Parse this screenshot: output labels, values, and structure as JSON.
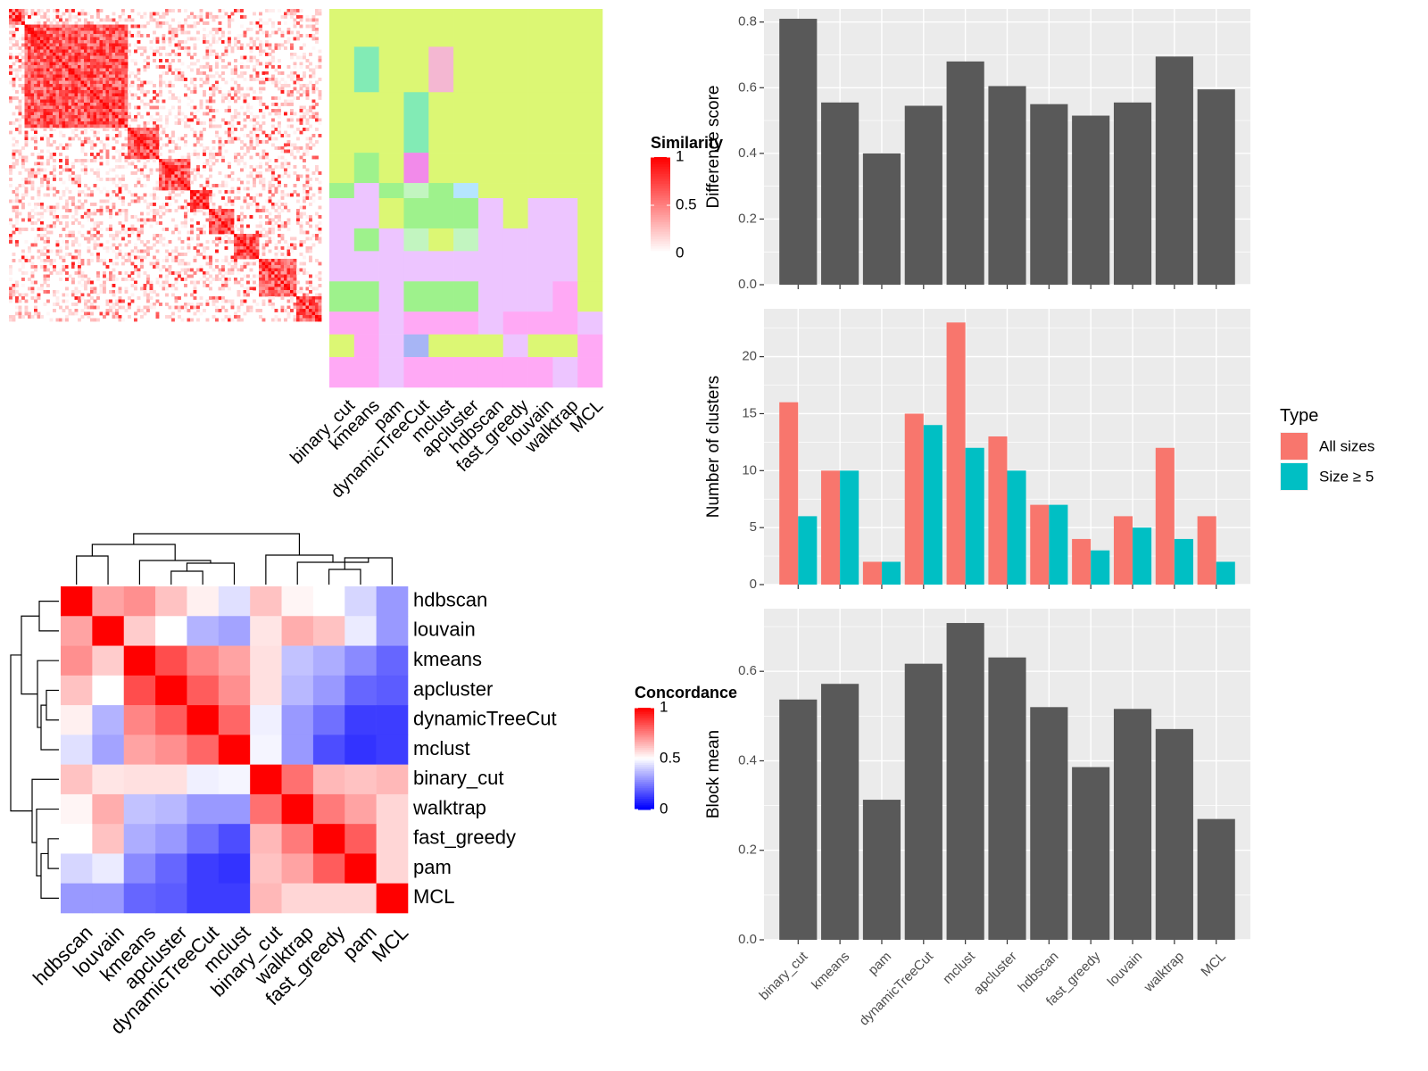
{
  "methods": [
    "binary_cut",
    "kmeans",
    "pam",
    "dynamicTreeCut",
    "mclust",
    "apcluster",
    "hdbscan",
    "fast_greedy",
    "louvain",
    "walktrap",
    "MCL"
  ],
  "chart_data": [
    {
      "id": "similarity_heatmap",
      "type": "heatmap",
      "legend": {
        "title": "Similarity",
        "ticks": [
          "1",
          "0.5",
          "0"
        ],
        "colors": [
          "#ff0000",
          "#ffffff"
        ]
      }
    },
    {
      "id": "cluster_assignment_heatmap",
      "type": "heatmap",
      "columns": [
        "binary_cut",
        "kmeans",
        "pam",
        "dynamicTreeCut",
        "mclust",
        "apcluster",
        "hdbscan",
        "fast_greedy",
        "louvain",
        "walktrap",
        "MCL"
      ],
      "palette": [
        "#dcf774",
        "#edc5ff",
        "#9ef28c",
        "#ffa9f5",
        "#82ebb5",
        "#f28aea",
        "#a7b5f5",
        "#f4b7d2",
        "#b5e5ff",
        "#c2f5c0"
      ]
    },
    {
      "id": "concordance_heatmap",
      "type": "heatmap",
      "rows": [
        "hdbscan",
        "louvain",
        "kmeans",
        "apcluster",
        "dynamicTreeCut",
        "mclust",
        "binary_cut",
        "walktrap",
        "fast_greedy",
        "pam",
        "MCL"
      ],
      "columns": [
        "hdbscan",
        "louvain",
        "kmeans",
        "apcluster",
        "dynamicTreeCut",
        "mclust",
        "binary_cut",
        "walktrap",
        "fast_greedy",
        "pam",
        "MCL"
      ],
      "values": [
        [
          1.0,
          0.68,
          0.72,
          0.62,
          0.53,
          0.44,
          0.62,
          0.52,
          0.5,
          0.42,
          0.3
        ],
        [
          0.68,
          1.0,
          0.6,
          0.5,
          0.35,
          0.32,
          0.55,
          0.66,
          0.62,
          0.46,
          0.3
        ],
        [
          0.72,
          0.6,
          1.0,
          0.85,
          0.74,
          0.68,
          0.56,
          0.38,
          0.34,
          0.27,
          0.2
        ],
        [
          0.62,
          0.5,
          0.85,
          1.0,
          0.82,
          0.72,
          0.56,
          0.36,
          0.3,
          0.2,
          0.18
        ],
        [
          0.53,
          0.35,
          0.74,
          0.82,
          1.0,
          0.8,
          0.47,
          0.3,
          0.22,
          0.12,
          0.12
        ],
        [
          0.44,
          0.32,
          0.68,
          0.72,
          0.8,
          1.0,
          0.48,
          0.3,
          0.15,
          0.1,
          0.12
        ],
        [
          0.62,
          0.55,
          0.56,
          0.56,
          0.47,
          0.48,
          1.0,
          0.78,
          0.64,
          0.62,
          0.64
        ],
        [
          0.52,
          0.66,
          0.38,
          0.36,
          0.3,
          0.3,
          0.78,
          1.0,
          0.76,
          0.68,
          0.58
        ],
        [
          0.5,
          0.62,
          0.34,
          0.3,
          0.22,
          0.15,
          0.64,
          0.76,
          1.0,
          0.82,
          0.58
        ],
        [
          0.42,
          0.46,
          0.27,
          0.2,
          0.12,
          0.1,
          0.62,
          0.68,
          0.82,
          1.0,
          0.58
        ],
        [
          0.3,
          0.3,
          0.2,
          0.18,
          0.12,
          0.12,
          0.64,
          0.58,
          0.58,
          0.58,
          1.0
        ]
      ],
      "legend": {
        "title": "Concordance",
        "ticks": [
          "1",
          "0.5",
          "0"
        ],
        "colors": [
          "#ff0000",
          "#ffffff",
          "#0000ff"
        ]
      }
    },
    {
      "id": "difference_score_chart",
      "type": "bar",
      "categories": [
        "binary_cut",
        "kmeans",
        "pam",
        "dynamicTreeCut",
        "mclust",
        "apcluster",
        "hdbscan",
        "fast_greedy",
        "louvain",
        "walktrap",
        "MCL"
      ],
      "values": [
        0.81,
        0.555,
        0.4,
        0.545,
        0.68,
        0.605,
        0.55,
        0.515,
        0.555,
        0.695,
        0.595
      ],
      "ylabel": "Difference score",
      "ylim": [
        0,
        0.84
      ],
      "yticks": [
        "0.0",
        "0.2",
        "0.4",
        "0.6",
        "0.8"
      ],
      "bar_color": "#595959",
      "panel_color": "#ebebeb"
    },
    {
      "id": "cluster_count_chart",
      "type": "bar",
      "categories": [
        "binary_cut",
        "kmeans",
        "pam",
        "dynamicTreeCut",
        "mclust",
        "apcluster",
        "hdbscan",
        "fast_greedy",
        "louvain",
        "walktrap",
        "MCL"
      ],
      "ylabel": "Number of clusters",
      "ylim": [
        0,
        24.2
      ],
      "yticks": [
        "0",
        "5",
        "10",
        "15",
        "20"
      ],
      "legend": {
        "title": "Type",
        "placement": "right"
      },
      "series": [
        {
          "name": "All sizes",
          "color": "#f8766d",
          "values": [
            16,
            10,
            2,
            15,
            23,
            13,
            7,
            4,
            6,
            12,
            6
          ]
        },
        {
          "name": "Size ≥ 5",
          "color": "#00bfc4",
          "values": [
            6,
            10,
            2,
            14,
            12,
            10,
            7,
            3,
            5,
            4,
            2
          ]
        }
      ],
      "panel_color": "#ebebeb"
    },
    {
      "id": "block_mean_chart",
      "type": "bar",
      "categories": [
        "binary_cut",
        "kmeans",
        "pam",
        "dynamicTreeCut",
        "mclust",
        "apcluster",
        "hdbscan",
        "fast_greedy",
        "louvain",
        "walktrap",
        "MCL"
      ],
      "values": [
        0.537,
        0.572,
        0.313,
        0.617,
        0.708,
        0.631,
        0.52,
        0.386,
        0.516,
        0.471,
        0.27
      ],
      "ylabel": "Block mean",
      "ylim": [
        0,
        0.74
      ],
      "yticks": [
        "0.0",
        "0.2",
        "0.4",
        "0.6"
      ],
      "bar_color": "#595959",
      "panel_color": "#ebebeb"
    }
  ]
}
